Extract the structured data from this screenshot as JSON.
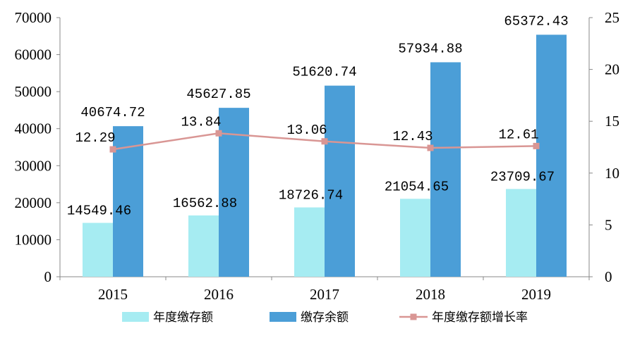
{
  "chart_data": {
    "type": "bar",
    "categories": [
      "2015",
      "2016",
      "2017",
      "2018",
      "2019"
    ],
    "series": [
      {
        "name": "年度缴存额",
        "kind": "bar",
        "axis": "left",
        "color": "#A6ECF2",
        "values": [
          14549.46,
          16562.88,
          18726.74,
          21054.65,
          23709.67
        ],
        "labels": [
          "14549.46",
          "16562.88",
          "18726.74",
          "21054.65",
          "23709.67"
        ]
      },
      {
        "name": "缴存余额",
        "kind": "bar",
        "axis": "left",
        "color": "#4B9ED7",
        "values": [
          40674.72,
          45627.85,
          51620.74,
          57934.88,
          65372.43
        ],
        "labels": [
          "40674.72",
          "45627.85",
          "51620.74",
          "57934.88",
          "65372.43"
        ]
      },
      {
        "name": "年度缴存额增长率",
        "kind": "line",
        "axis": "right",
        "color": "#D99694",
        "values": [
          12.29,
          13.84,
          13.06,
          12.43,
          12.61
        ],
        "labels": [
          "12.29",
          "13.84",
          "13.06",
          "12.43",
          "12.61"
        ]
      }
    ],
    "y_left": {
      "min": 0,
      "max": 70000,
      "ticks": [
        "0",
        "10000",
        "20000",
        "30000",
        "40000",
        "50000",
        "60000",
        "70000"
      ]
    },
    "y_right": {
      "min": 0,
      "max": 25,
      "ticks": [
        "0",
        "5",
        "10",
        "15",
        "20",
        "25"
      ]
    },
    "title": "",
    "xlabel": "",
    "ylabel": "",
    "grid": false,
    "legend_position": "bottom"
  }
}
